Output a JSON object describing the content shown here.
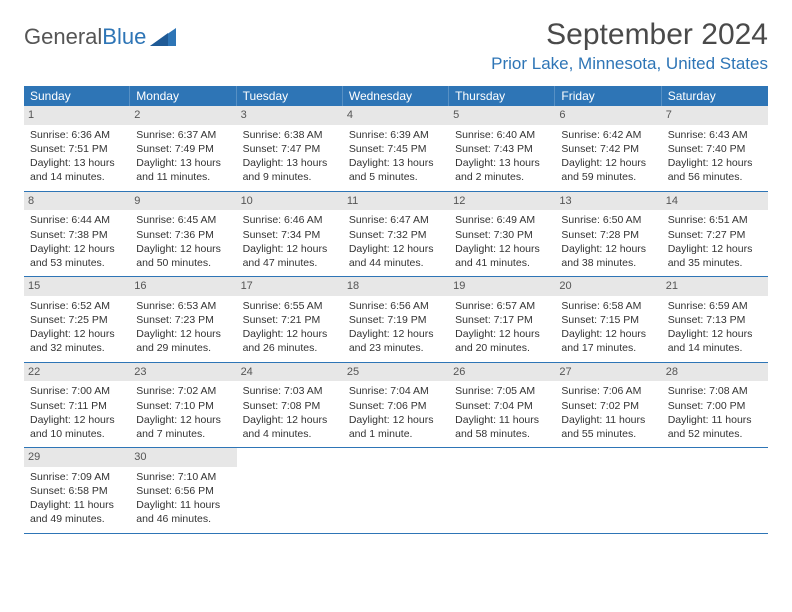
{
  "logo": {
    "text1": "General",
    "text2": "Blue"
  },
  "title": "September 2024",
  "location": "Prior Lake, Minnesota, United States",
  "accent_color": "#2e75b6",
  "daynames": [
    "Sunday",
    "Monday",
    "Tuesday",
    "Wednesday",
    "Thursday",
    "Friday",
    "Saturday"
  ],
  "weeks": [
    [
      {
        "date": "1",
        "sunrise": "Sunrise: 6:36 AM",
        "sunset": "Sunset: 7:51 PM",
        "daylight": "Daylight: 13 hours and 14 minutes."
      },
      {
        "date": "2",
        "sunrise": "Sunrise: 6:37 AM",
        "sunset": "Sunset: 7:49 PM",
        "daylight": "Daylight: 13 hours and 11 minutes."
      },
      {
        "date": "3",
        "sunrise": "Sunrise: 6:38 AM",
        "sunset": "Sunset: 7:47 PM",
        "daylight": "Daylight: 13 hours and 9 minutes."
      },
      {
        "date": "4",
        "sunrise": "Sunrise: 6:39 AM",
        "sunset": "Sunset: 7:45 PM",
        "daylight": "Daylight: 13 hours and 5 minutes."
      },
      {
        "date": "5",
        "sunrise": "Sunrise: 6:40 AM",
        "sunset": "Sunset: 7:43 PM",
        "daylight": "Daylight: 13 hours and 2 minutes."
      },
      {
        "date": "6",
        "sunrise": "Sunrise: 6:42 AM",
        "sunset": "Sunset: 7:42 PM",
        "daylight": "Daylight: 12 hours and 59 minutes."
      },
      {
        "date": "7",
        "sunrise": "Sunrise: 6:43 AM",
        "sunset": "Sunset: 7:40 PM",
        "daylight": "Daylight: 12 hours and 56 minutes."
      }
    ],
    [
      {
        "date": "8",
        "sunrise": "Sunrise: 6:44 AM",
        "sunset": "Sunset: 7:38 PM",
        "daylight": "Daylight: 12 hours and 53 minutes."
      },
      {
        "date": "9",
        "sunrise": "Sunrise: 6:45 AM",
        "sunset": "Sunset: 7:36 PM",
        "daylight": "Daylight: 12 hours and 50 minutes."
      },
      {
        "date": "10",
        "sunrise": "Sunrise: 6:46 AM",
        "sunset": "Sunset: 7:34 PM",
        "daylight": "Daylight: 12 hours and 47 minutes."
      },
      {
        "date": "11",
        "sunrise": "Sunrise: 6:47 AM",
        "sunset": "Sunset: 7:32 PM",
        "daylight": "Daylight: 12 hours and 44 minutes."
      },
      {
        "date": "12",
        "sunrise": "Sunrise: 6:49 AM",
        "sunset": "Sunset: 7:30 PM",
        "daylight": "Daylight: 12 hours and 41 minutes."
      },
      {
        "date": "13",
        "sunrise": "Sunrise: 6:50 AM",
        "sunset": "Sunset: 7:28 PM",
        "daylight": "Daylight: 12 hours and 38 minutes."
      },
      {
        "date": "14",
        "sunrise": "Sunrise: 6:51 AM",
        "sunset": "Sunset: 7:27 PM",
        "daylight": "Daylight: 12 hours and 35 minutes."
      }
    ],
    [
      {
        "date": "15",
        "sunrise": "Sunrise: 6:52 AM",
        "sunset": "Sunset: 7:25 PM",
        "daylight": "Daylight: 12 hours and 32 minutes."
      },
      {
        "date": "16",
        "sunrise": "Sunrise: 6:53 AM",
        "sunset": "Sunset: 7:23 PM",
        "daylight": "Daylight: 12 hours and 29 minutes."
      },
      {
        "date": "17",
        "sunrise": "Sunrise: 6:55 AM",
        "sunset": "Sunset: 7:21 PM",
        "daylight": "Daylight: 12 hours and 26 minutes."
      },
      {
        "date": "18",
        "sunrise": "Sunrise: 6:56 AM",
        "sunset": "Sunset: 7:19 PM",
        "daylight": "Daylight: 12 hours and 23 minutes."
      },
      {
        "date": "19",
        "sunrise": "Sunrise: 6:57 AM",
        "sunset": "Sunset: 7:17 PM",
        "daylight": "Daylight: 12 hours and 20 minutes."
      },
      {
        "date": "20",
        "sunrise": "Sunrise: 6:58 AM",
        "sunset": "Sunset: 7:15 PM",
        "daylight": "Daylight: 12 hours and 17 minutes."
      },
      {
        "date": "21",
        "sunrise": "Sunrise: 6:59 AM",
        "sunset": "Sunset: 7:13 PM",
        "daylight": "Daylight: 12 hours and 14 minutes."
      }
    ],
    [
      {
        "date": "22",
        "sunrise": "Sunrise: 7:00 AM",
        "sunset": "Sunset: 7:11 PM",
        "daylight": "Daylight: 12 hours and 10 minutes."
      },
      {
        "date": "23",
        "sunrise": "Sunrise: 7:02 AM",
        "sunset": "Sunset: 7:10 PM",
        "daylight": "Daylight: 12 hours and 7 minutes."
      },
      {
        "date": "24",
        "sunrise": "Sunrise: 7:03 AM",
        "sunset": "Sunset: 7:08 PM",
        "daylight": "Daylight: 12 hours and 4 minutes."
      },
      {
        "date": "25",
        "sunrise": "Sunrise: 7:04 AM",
        "sunset": "Sunset: 7:06 PM",
        "daylight": "Daylight: 12 hours and 1 minute."
      },
      {
        "date": "26",
        "sunrise": "Sunrise: 7:05 AM",
        "sunset": "Sunset: 7:04 PM",
        "daylight": "Daylight: 11 hours and 58 minutes."
      },
      {
        "date": "27",
        "sunrise": "Sunrise: 7:06 AM",
        "sunset": "Sunset: 7:02 PM",
        "daylight": "Daylight: 11 hours and 55 minutes."
      },
      {
        "date": "28",
        "sunrise": "Sunrise: 7:08 AM",
        "sunset": "Sunset: 7:00 PM",
        "daylight": "Daylight: 11 hours and 52 minutes."
      }
    ],
    [
      {
        "date": "29",
        "sunrise": "Sunrise: 7:09 AM",
        "sunset": "Sunset: 6:58 PM",
        "daylight": "Daylight: 11 hours and 49 minutes."
      },
      {
        "date": "30",
        "sunrise": "Sunrise: 7:10 AM",
        "sunset": "Sunset: 6:56 PM",
        "daylight": "Daylight: 11 hours and 46 minutes."
      },
      {
        "empty": true
      },
      {
        "empty": true
      },
      {
        "empty": true
      },
      {
        "empty": true
      },
      {
        "empty": true
      }
    ]
  ]
}
